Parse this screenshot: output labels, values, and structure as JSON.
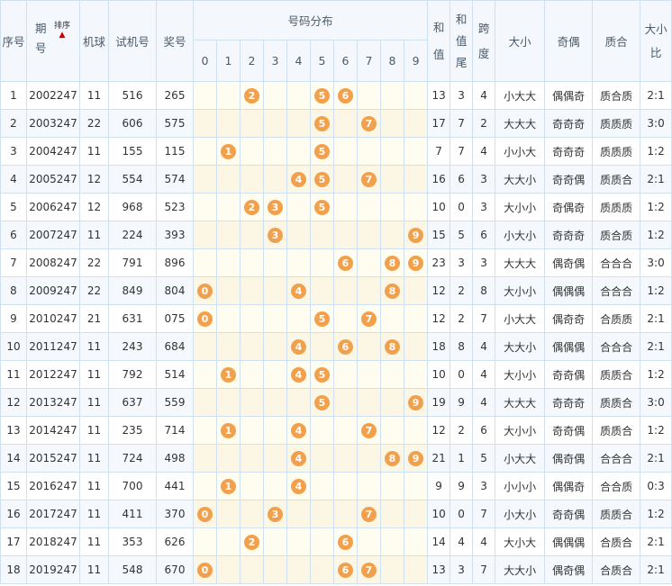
{
  "header": {
    "seq": "序号",
    "issue": "期号",
    "sort": "排序",
    "machine": "机球",
    "trial": "试机号",
    "prize": "奖号",
    "dist": "号码分布",
    "digits": [
      "0",
      "1",
      "2",
      "3",
      "4",
      "5",
      "6",
      "7",
      "8",
      "9"
    ],
    "sum": "和值",
    "tail": "和值尾",
    "span": "跨度",
    "bigsmall": "大小",
    "oddeven": "奇偶",
    "primecomp": "质合",
    "ratio": "大小比"
  },
  "colors": {
    "ball": "#f2a04c",
    "sort_arrow": "#cc0000",
    "border": "#cfe0f0"
  },
  "rows": [
    {
      "seq": "1",
      "issue": "2002247",
      "machine": "11",
      "trial": "516",
      "prize": "265",
      "sum": "13",
      "tail": "3",
      "span": "4",
      "bs": "小大大",
      "oe": "偶偶奇",
      "pc": "质合质",
      "ratio": "2:1"
    },
    {
      "seq": "2",
      "issue": "2003247",
      "machine": "22",
      "trial": "606",
      "prize": "575",
      "sum": "17",
      "tail": "7",
      "span": "2",
      "bs": "大大大",
      "oe": "奇奇奇",
      "pc": "质质质",
      "ratio": "3:0"
    },
    {
      "seq": "3",
      "issue": "2004247",
      "machine": "11",
      "trial": "155",
      "prize": "115",
      "sum": "7",
      "tail": "7",
      "span": "4",
      "bs": "小小大",
      "oe": "奇奇奇",
      "pc": "质质质",
      "ratio": "1:2"
    },
    {
      "seq": "4",
      "issue": "2005247",
      "machine": "12",
      "trial": "554",
      "prize": "574",
      "sum": "16",
      "tail": "6",
      "span": "3",
      "bs": "大大小",
      "oe": "奇奇偶",
      "pc": "质质合",
      "ratio": "2:1"
    },
    {
      "seq": "5",
      "issue": "2006247",
      "machine": "12",
      "trial": "968",
      "prize": "523",
      "sum": "10",
      "tail": "0",
      "span": "3",
      "bs": "大小小",
      "oe": "奇偶奇",
      "pc": "质质质",
      "ratio": "1:2"
    },
    {
      "seq": "6",
      "issue": "2007247",
      "machine": "11",
      "trial": "224",
      "prize": "393",
      "sum": "15",
      "tail": "5",
      "span": "6",
      "bs": "小大小",
      "oe": "奇奇奇",
      "pc": "质合质",
      "ratio": "1:2"
    },
    {
      "seq": "7",
      "issue": "2008247",
      "machine": "22",
      "trial": "791",
      "prize": "896",
      "sum": "23",
      "tail": "3",
      "span": "3",
      "bs": "大大大",
      "oe": "偶奇偶",
      "pc": "合合合",
      "ratio": "3:0"
    },
    {
      "seq": "8",
      "issue": "2009247",
      "machine": "22",
      "trial": "849",
      "prize": "804",
      "sum": "12",
      "tail": "2",
      "span": "8",
      "bs": "大小小",
      "oe": "偶偶偶",
      "pc": "合合合",
      "ratio": "1:2"
    },
    {
      "seq": "9",
      "issue": "2010247",
      "machine": "21",
      "trial": "631",
      "prize": "075",
      "sum": "12",
      "tail": "2",
      "span": "7",
      "bs": "小大大",
      "oe": "偶奇奇",
      "pc": "合质质",
      "ratio": "2:1"
    },
    {
      "seq": "10",
      "issue": "2011247",
      "machine": "11",
      "trial": "243",
      "prize": "684",
      "sum": "18",
      "tail": "8",
      "span": "4",
      "bs": "大大小",
      "oe": "偶偶偶",
      "pc": "合合合",
      "ratio": "2:1"
    },
    {
      "seq": "11",
      "issue": "2012247",
      "machine": "11",
      "trial": "792",
      "prize": "514",
      "sum": "10",
      "tail": "0",
      "span": "4",
      "bs": "大小小",
      "oe": "奇奇偶",
      "pc": "质质合",
      "ratio": "1:2"
    },
    {
      "seq": "12",
      "issue": "2013247",
      "machine": "11",
      "trial": "637",
      "prize": "559",
      "sum": "19",
      "tail": "9",
      "span": "4",
      "bs": "大大大",
      "oe": "奇奇奇",
      "pc": "质质合",
      "ratio": "3:0"
    },
    {
      "seq": "13",
      "issue": "2014247",
      "machine": "11",
      "trial": "235",
      "prize": "714",
      "sum": "12",
      "tail": "2",
      "span": "6",
      "bs": "大小小",
      "oe": "奇奇偶",
      "pc": "质质合",
      "ratio": "1:2"
    },
    {
      "seq": "14",
      "issue": "2015247",
      "machine": "11",
      "trial": "724",
      "prize": "498",
      "sum": "21",
      "tail": "1",
      "span": "5",
      "bs": "小大大",
      "oe": "偶奇偶",
      "pc": "合合合",
      "ratio": "2:1"
    },
    {
      "seq": "15",
      "issue": "2016247",
      "machine": "11",
      "trial": "700",
      "prize": "441",
      "sum": "9",
      "tail": "9",
      "span": "3",
      "bs": "小小小",
      "oe": "偶偶奇",
      "pc": "合合质",
      "ratio": "0:3"
    },
    {
      "seq": "16",
      "issue": "2017247",
      "machine": "11",
      "trial": "411",
      "prize": "370",
      "sum": "10",
      "tail": "0",
      "span": "7",
      "bs": "小大小",
      "oe": "奇奇偶",
      "pc": "质质合",
      "ratio": "1:2"
    },
    {
      "seq": "17",
      "issue": "2018247",
      "machine": "11",
      "trial": "353",
      "prize": "626",
      "sum": "14",
      "tail": "4",
      "span": "4",
      "bs": "大小大",
      "oe": "偶偶偶",
      "pc": "合质合",
      "ratio": "2:1"
    },
    {
      "seq": "18",
      "issue": "2019247",
      "machine": "11",
      "trial": "548",
      "prize": "670",
      "sum": "13",
      "tail": "3",
      "span": "7",
      "bs": "大大小",
      "oe": "偶奇偶",
      "pc": "合质合",
      "ratio": "2:1"
    }
  ]
}
